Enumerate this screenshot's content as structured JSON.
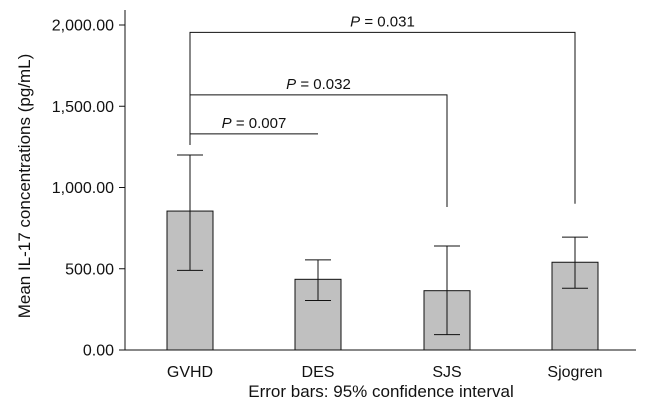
{
  "chart_data": {
    "type": "bar",
    "title": "",
    "ylabel": "Mean IL-17 concentrations (pg/mL)",
    "xlabel": "Error bars: 95% confidence interval",
    "categories": [
      "GVHD",
      "DES",
      "SJS",
      "Sjogren"
    ],
    "values": [
      855,
      435,
      365,
      540
    ],
    "error_low": [
      490,
      305,
      95,
      380
    ],
    "error_high": [
      1200,
      555,
      640,
      695
    ],
    "ylim": [
      0,
      2000
    ],
    "yticks": [
      0,
      500,
      1000,
      1500,
      2000
    ],
    "ytick_labels": [
      "0.00",
      "500.00",
      "1,000.00",
      "1,500.00",
      "2,000.00"
    ],
    "bar_color": "#c0c0c0",
    "grid": false,
    "comparisons": [
      {
        "from": "GVHD",
        "to": "DES",
        "level": 1330,
        "end_level": 1330,
        "label_prefix": "P",
        "label_value": " = 0.007"
      },
      {
        "from": "GVHD",
        "to": "SJS",
        "level": 1570,
        "end_level": 880,
        "label_prefix": "P",
        "label_value": " = 0.032"
      },
      {
        "from": "GVHD",
        "to": "Sjogren",
        "level": 1955,
        "end_level": 900,
        "label_prefix": "P",
        "label_value": " = 0.031"
      }
    ]
  }
}
